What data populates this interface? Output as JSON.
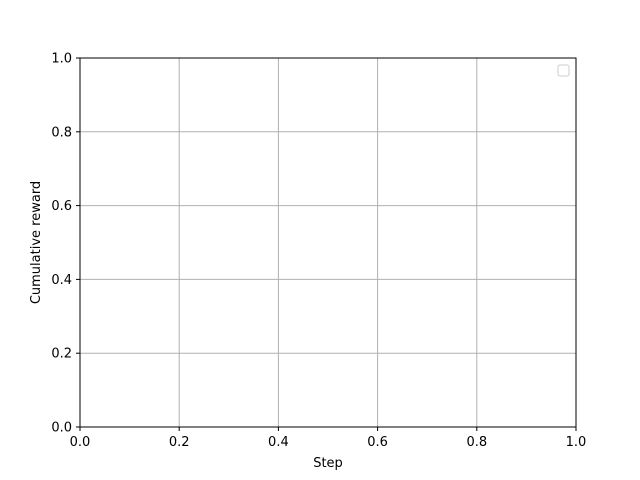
{
  "chart_data": {
    "type": "line",
    "title": "",
    "xlabel": "Step",
    "ylabel": "Cumulative reward",
    "xlim": [
      0.0,
      1.0
    ],
    "ylim": [
      0.0,
      1.0
    ],
    "x_ticks": [
      "0.0",
      "0.2",
      "0.4",
      "0.6",
      "0.8",
      "1.0"
    ],
    "y_ticks": [
      "0.0",
      "0.2",
      "0.4",
      "0.6",
      "0.8",
      "1.0"
    ],
    "grid": true,
    "legend": {
      "position": "top-right",
      "entries": []
    },
    "series": [],
    "colors": {
      "grid": "#b0b0b0",
      "axes": "#000000",
      "legend_border": "#cccccc",
      "background": "#ffffff"
    }
  }
}
